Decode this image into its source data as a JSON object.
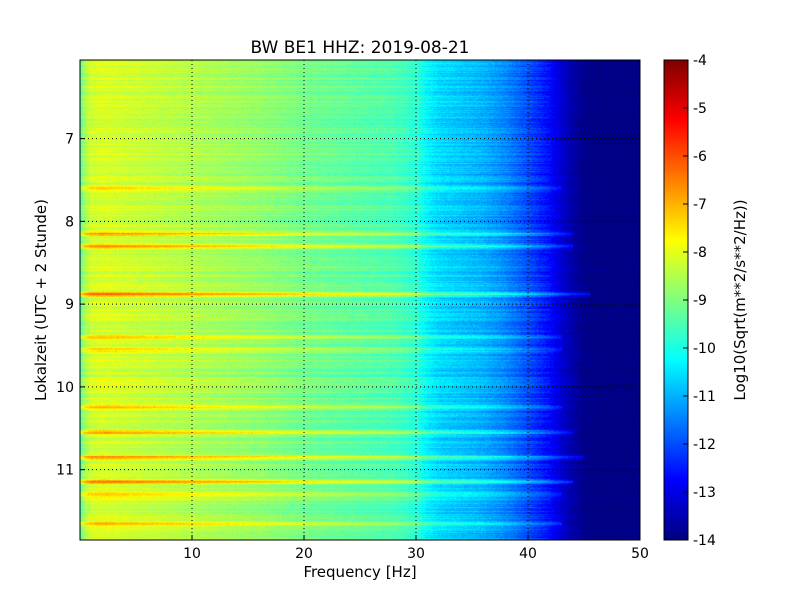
{
  "chart_data": {
    "type": "heatmap",
    "title": "BW BE1 HHZ: 2019-08-21",
    "xlabel": "Frequency [Hz]",
    "ylabel": "Lokalzeit (UTC + 2 Stunde)",
    "xlim": [
      0,
      50
    ],
    "ylim": [
      6.05,
      11.85
    ],
    "y_inverted": true,
    "x_ticks": [
      "10",
      "20",
      "30",
      "40",
      "50"
    ],
    "y_ticks": [
      "7",
      "8",
      "9",
      "10",
      "11"
    ],
    "grid": true,
    "colormap": "jet",
    "colorbar": {
      "label": "Log10(Sqrt(m**2/s**2/Hz))",
      "range": [
        -14,
        -4
      ],
      "ticks": [
        "-4",
        "-5",
        "-6",
        "-7",
        "-8",
        "-9",
        "-10",
        "-11",
        "-12",
        "-13",
        "-14"
      ]
    },
    "spectral_profile": {
      "frequency_hz": [
        0,
        0.5,
        1,
        2,
        4,
        8,
        12,
        16,
        20,
        24,
        28,
        30,
        31,
        32,
        34,
        36,
        38,
        40,
        42,
        43,
        44,
        45,
        46,
        50
      ],
      "level": [
        -9.4,
        -8.5,
        -8.2,
        -8.1,
        -8.2,
        -8.4,
        -8.6,
        -8.8,
        -9.1,
        -9.3,
        -9.5,
        -9.8,
        -10.3,
        -10.6,
        -10.8,
        -11.0,
        -11.4,
        -12.0,
        -12.7,
        -13.2,
        -13.6,
        -13.9,
        -14.0,
        -14.0
      ]
    },
    "bright_bands": [
      {
        "time": 8.15,
        "delta": 1.4,
        "fmax": 44
      },
      {
        "time": 8.3,
        "delta": 1.5,
        "fmax": 44
      },
      {
        "time": 8.88,
        "delta": 2.0,
        "fmax": 45.5
      },
      {
        "time": 9.4,
        "delta": 1.0,
        "fmax": 43
      },
      {
        "time": 9.55,
        "delta": 0.9,
        "fmax": 43
      },
      {
        "time": 10.25,
        "delta": 1.0,
        "fmax": 43
      },
      {
        "time": 10.55,
        "delta": 1.4,
        "fmax": 44
      },
      {
        "time": 10.85,
        "delta": 1.6,
        "fmax": 45
      },
      {
        "time": 11.15,
        "delta": 1.8,
        "fmax": 44
      },
      {
        "time": 11.3,
        "delta": 1.0,
        "fmax": 43
      },
      {
        "time": 11.65,
        "delta": 1.3,
        "fmax": 43
      },
      {
        "time": 7.6,
        "delta": 0.8,
        "fmax": 43
      }
    ]
  }
}
